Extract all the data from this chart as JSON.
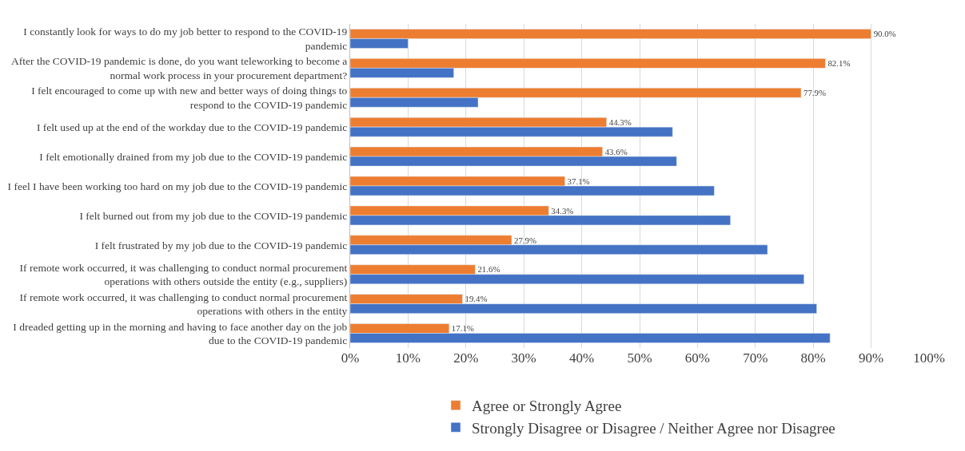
{
  "chart_data": {
    "type": "bar",
    "orientation": "horizontal",
    "categories": [
      "I constantly look for ways to do my job better to respond to the COVID-19 pandemic",
      "After the COVID-19 pandemic is done, do you want teleworking to become a normal work process in your procurement department?",
      "I felt encouraged to come up with new and better ways of doing things to respond to the COVID-19 pandemic",
      "I felt used up at the end of the workday due to the COVID-19 pandemic",
      "I felt emotionally drained from my job due to the COVID-19 pandemic",
      "I feel I have been working too hard on my job due to the COVID-19 pandemic",
      "I felt burned out from my job due to the COVID-19 pandemic",
      "I felt frustrated by my job due to the COVID-19 pandemic",
      "If remote work occurred, it was challenging to conduct normal procurement operations with others outside the entity (e.g., suppliers)",
      "If remote work occurred, it was challenging to conduct normal procurement operations with others in the entity",
      "I dreaded getting up in the morning and having to face another day on the job due to the COVID-19 pandemic"
    ],
    "series": [
      {
        "name": "Agree or Strongly Agree",
        "color": "#ed7d31",
        "values": [
          90.0,
          82.1,
          77.9,
          44.3,
          43.6,
          37.1,
          34.3,
          27.9,
          21.6,
          19.4,
          17.1
        ],
        "value_labels": [
          "90.0%",
          "82.1%",
          "77.9%",
          "44.3%",
          "43.6%",
          "37.1%",
          "34.3%",
          "27.9%",
          "21.6%",
          "19.4%",
          "17.1%"
        ]
      },
      {
        "name": "Strongly Disagree or Disagree / Neither Agree nor Disagree",
        "color": "#4472c4",
        "values": [
          10.0,
          17.9,
          22.1,
          55.7,
          56.4,
          62.9,
          65.7,
          72.1,
          78.4,
          80.6,
          82.9
        ]
      }
    ],
    "xlim": [
      0,
      100
    ],
    "xticks": [
      {
        "value": 0,
        "label": "0%"
      },
      {
        "value": 10,
        "label": "10%"
      },
      {
        "value": 20,
        "label": "20%"
      },
      {
        "value": 30,
        "label": "30%"
      },
      {
        "value": 40,
        "label": "40%"
      },
      {
        "value": 50,
        "label": "50%"
      },
      {
        "value": 60,
        "label": "60%"
      },
      {
        "value": 70,
        "label": "70%"
      },
      {
        "value": 80,
        "label": "80%"
      },
      {
        "value": 90,
        "label": "90%"
      },
      {
        "value": 100,
        "label": "100%"
      }
    ],
    "grid": "x",
    "legend": "bottom"
  }
}
